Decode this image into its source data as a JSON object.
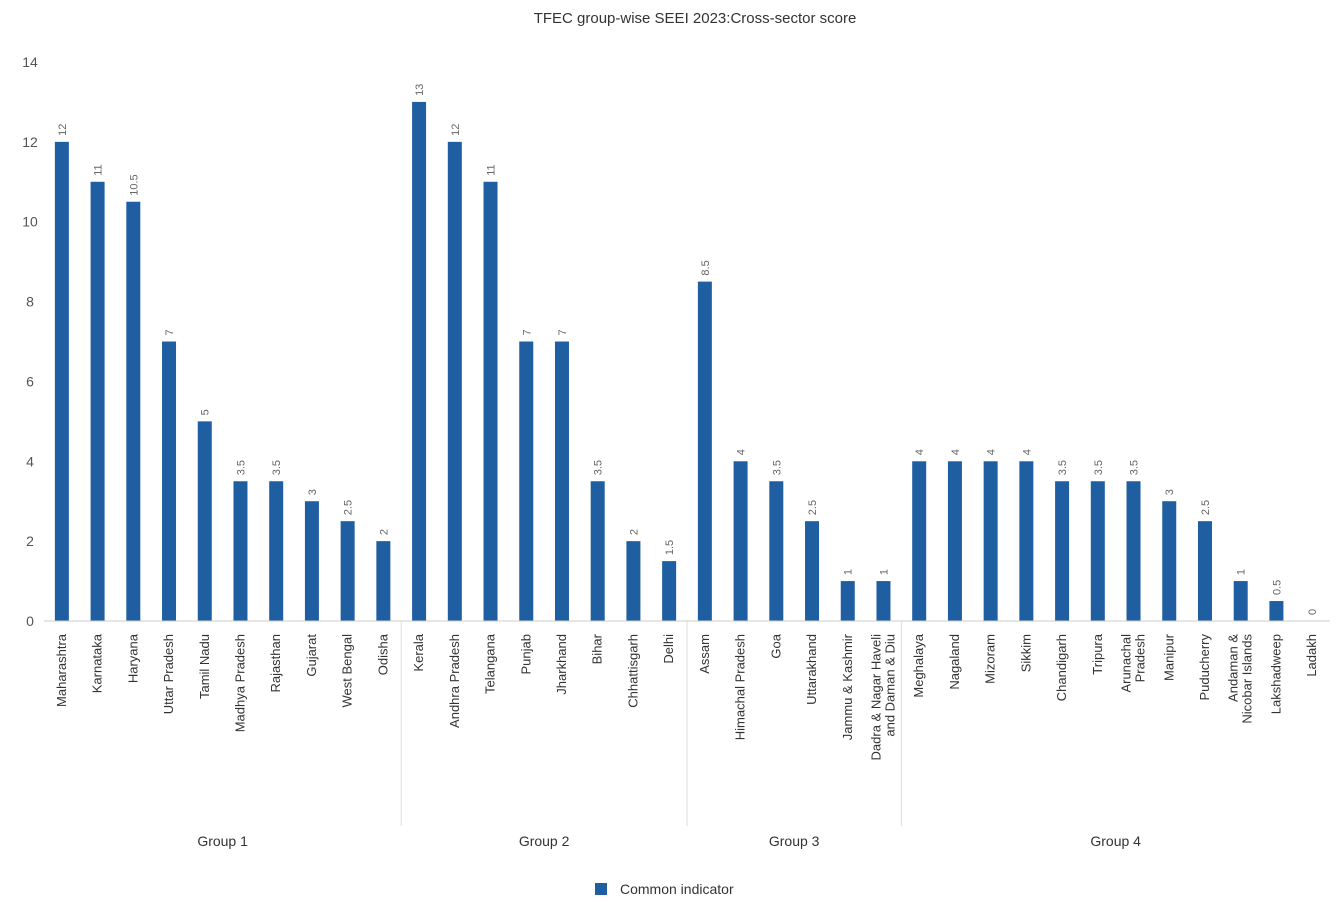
{
  "chart_data": {
    "type": "bar",
    "title": "TFEC group-wise SEEI 2023:Cross-sector score",
    "ylim": [
      0,
      14
    ],
    "yticks": [
      0,
      2,
      4,
      6,
      8,
      10,
      12,
      14
    ],
    "grid": false,
    "legend_position": "bottom",
    "bar_color": "#1f5fa1",
    "groups": [
      {
        "name": "Group 1",
        "categories": [
          "Maharashtra",
          "Karnataka",
          "Haryana",
          "Uttar Pradesh",
          "Tamil Nadu",
          "Madhya Pradesh",
          "Rajasthan",
          "Gujarat",
          "West Bengal",
          "Odisha"
        ],
        "values": [
          12,
          11,
          10.5,
          7,
          5,
          3.5,
          3.5,
          3,
          2.5,
          2
        ]
      },
      {
        "name": "Group 2",
        "categories": [
          "Kerala",
          "Andhra Pradesh",
          "Telangana",
          "Punjab",
          "Jharkhand",
          "Bihar",
          "Chhattisgarh",
          "Delhi"
        ],
        "values": [
          13,
          12,
          11,
          7,
          7,
          3.5,
          2,
          1.5
        ]
      },
      {
        "name": "Group 3",
        "categories": [
          "Assam",
          "Himachal Pradesh",
          "Goa",
          "Uttarakhand",
          "Jammu & Kashmir",
          "Dadra & Nagar Haveli and Daman & Diu"
        ],
        "values": [
          8.5,
          4,
          3.5,
          2.5,
          1,
          1
        ]
      },
      {
        "name": "Group 4",
        "categories": [
          "Meghalaya",
          "Nagaland",
          "Mizoram",
          "Sikkim",
          "Chandigarh",
          "Tripura",
          "Arunachal Pradesh",
          "Manipur",
          "Puducherry",
          "Andaman & Nicobar Islands",
          "Lakshadweep",
          "Ladakh"
        ],
        "values": [
          4,
          4,
          4,
          4,
          3.5,
          3.5,
          3.5,
          3,
          2.5,
          1,
          0.5,
          0
        ]
      }
    ],
    "series": [
      {
        "name": "Common indicator"
      }
    ]
  }
}
